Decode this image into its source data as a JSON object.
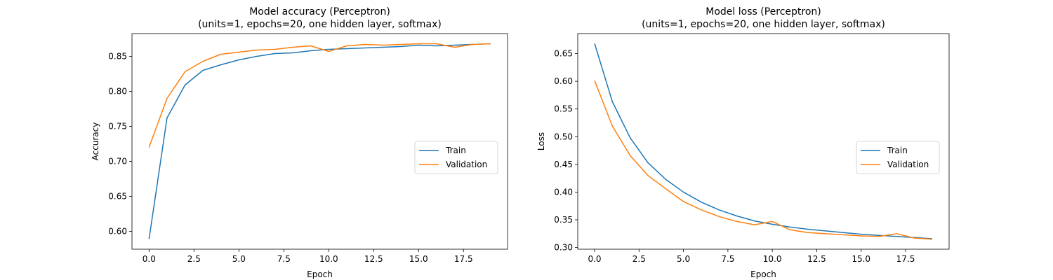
{
  "chart_data": [
    {
      "type": "line",
      "title": "Model accuracy (Perceptron)",
      "subtitle": "(units=1, epochs=20, one hidden layer, softmax)",
      "xlabel": "Epoch",
      "ylabel": "Accuracy",
      "xlim": [
        -0.95,
        19.95
      ],
      "ylim": [
        0.5745,
        0.8825
      ],
      "xticks": [
        0.0,
        2.5,
        5.0,
        7.5,
        10.0,
        12.5,
        15.0,
        17.5
      ],
      "xtick_labels": [
        "0.0",
        "2.5",
        "5.0",
        "7.5",
        "10.0",
        "12.5",
        "15.0",
        "17.5"
      ],
      "yticks": [
        0.6,
        0.65,
        0.7,
        0.75,
        0.8,
        0.85
      ],
      "ytick_labels": [
        "0.60",
        "0.65",
        "0.70",
        "0.75",
        "0.80",
        "0.85"
      ],
      "grid": false,
      "legend_position": "center-right",
      "x": [
        0,
        1,
        2,
        3,
        4,
        5,
        6,
        7,
        8,
        9,
        10,
        11,
        12,
        13,
        14,
        15,
        16,
        17,
        18,
        19
      ],
      "series": [
        {
          "name": "Train",
          "color": "#1f77b4",
          "values": [
            0.589,
            0.762,
            0.809,
            0.83,
            0.838,
            0.845,
            0.85,
            0.854,
            0.855,
            0.858,
            0.86,
            0.861,
            0.862,
            0.863,
            0.864,
            0.866,
            0.865,
            0.866,
            0.867,
            0.868
          ]
        },
        {
          "name": "Validation",
          "color": "#ff7f0e",
          "values": [
            0.72,
            0.79,
            0.828,
            0.843,
            0.853,
            0.856,
            0.859,
            0.86,
            0.863,
            0.865,
            0.857,
            0.865,
            0.867,
            0.866,
            0.867,
            0.868,
            0.868,
            0.863,
            0.867,
            0.868
          ]
        }
      ]
    },
    {
      "type": "line",
      "title": "Model loss (Perceptron)",
      "subtitle": "(units=1, epochs=20, one hidden layer, softmax)",
      "xlabel": "Epoch",
      "ylabel": "Loss",
      "xlim": [
        -0.95,
        19.95
      ],
      "ylim": [
        0.297,
        0.686
      ],
      "xticks": [
        0.0,
        2.5,
        5.0,
        7.5,
        10.0,
        12.5,
        15.0,
        17.5
      ],
      "xtick_labels": [
        "0.0",
        "2.5",
        "5.0",
        "7.5",
        "10.0",
        "12.5",
        "15.0",
        "17.5"
      ],
      "yticks": [
        0.3,
        0.35,
        0.4,
        0.45,
        0.5,
        0.55,
        0.6,
        0.65
      ],
      "ytick_labels": [
        "0.30",
        "0.35",
        "0.40",
        "0.45",
        "0.50",
        "0.55",
        "0.60",
        "0.65"
      ],
      "grid": false,
      "legend_position": "center-right",
      "x": [
        0,
        1,
        2,
        3,
        4,
        5,
        6,
        7,
        8,
        9,
        10,
        11,
        12,
        13,
        14,
        15,
        16,
        17,
        18,
        19
      ],
      "series": [
        {
          "name": "Train",
          "color": "#1f77b4",
          "values": [
            0.668,
            0.563,
            0.498,
            0.453,
            0.423,
            0.4,
            0.382,
            0.368,
            0.357,
            0.348,
            0.342,
            0.337,
            0.333,
            0.33,
            0.327,
            0.324,
            0.322,
            0.32,
            0.318,
            0.316
          ]
        },
        {
          "name": "Validation",
          "color": "#ff7f0e",
          "values": [
            0.601,
            0.519,
            0.466,
            0.43,
            0.406,
            0.383,
            0.368,
            0.356,
            0.347,
            0.341,
            0.347,
            0.332,
            0.327,
            0.325,
            0.323,
            0.321,
            0.32,
            0.325,
            0.317,
            0.315
          ]
        }
      ]
    }
  ]
}
